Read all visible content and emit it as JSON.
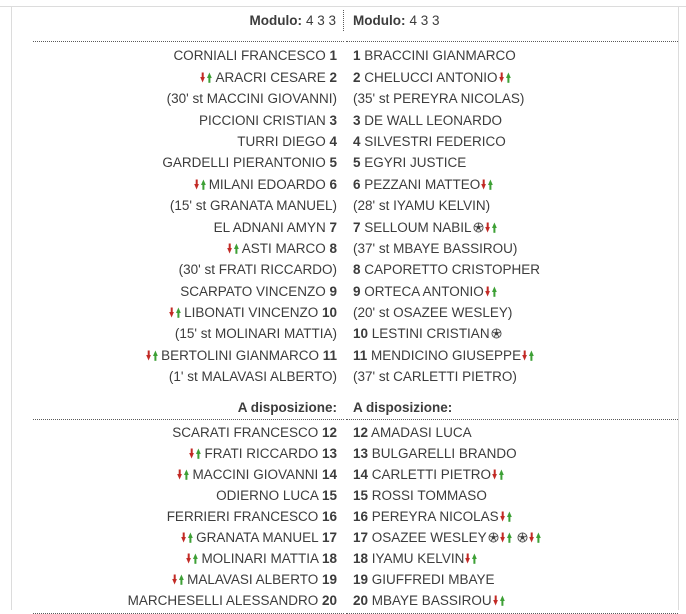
{
  "panel": {
    "modulo_label": "Modulo:",
    "bench_label": "A disposizione:"
  },
  "colors": {
    "text": "#3c3c3c",
    "panel_border": "#dcdcdc",
    "separator_dots": "#5a5a5a",
    "sub_red": "#c22a25",
    "sub_green": "#3da035",
    "ball_dark": "#3f3f3f",
    "ball_light": "#ededed"
  },
  "icons": {
    "substitution": "red-down-arrow-green-up-arrow",
    "goal": "soccer-ball"
  },
  "teams": [
    {
      "side": "home",
      "modulo": "4 3 3",
      "starters": [
        {
          "num": "1",
          "name": "CORNIALI FRANCESCO",
          "icons": [],
          "note": ""
        },
        {
          "num": "2",
          "name": "ARACRI CESARE",
          "icons": [
            "sub"
          ],
          "note": "(30' st MACCINI GIOVANNI)"
        },
        {
          "num": "3",
          "name": "PICCIONI CRISTIAN",
          "icons": [],
          "note": ""
        },
        {
          "num": "4",
          "name": "TURRI DIEGO",
          "icons": [],
          "note": ""
        },
        {
          "num": "5",
          "name": "GARDELLI PIERANTONIO",
          "icons": [],
          "note": ""
        },
        {
          "num": "6",
          "name": "MILANI EDOARDO",
          "icons": [
            "sub"
          ],
          "note": "(15' st GRANATA MANUEL)"
        },
        {
          "num": "7",
          "name": "EL ADNANI AMYN",
          "icons": [],
          "note": ""
        },
        {
          "num": "8",
          "name": "ASTI MARCO",
          "icons": [
            "sub"
          ],
          "note": "(30' st FRATI RICCARDO)"
        },
        {
          "num": "9",
          "name": "SCARPATO VINCENZO",
          "icons": [],
          "note": ""
        },
        {
          "num": "10",
          "name": "LIBONATI VINCENZO",
          "icons": [
            "sub"
          ],
          "note": "(15' st MOLINARI MATTIA)"
        },
        {
          "num": "11",
          "name": "BERTOLINI GIANMARCO",
          "icons": [
            "sub"
          ],
          "note": "(1' st MALAVASI ALBERTO)"
        }
      ],
      "bench": [
        {
          "num": "12",
          "name": "SCARATI FRANCESCO",
          "icons": [],
          "note": ""
        },
        {
          "num": "13",
          "name": "FRATI RICCARDO",
          "icons": [
            "sub"
          ],
          "note": ""
        },
        {
          "num": "14",
          "name": "MACCINI GIOVANNI",
          "icons": [
            "sub"
          ],
          "note": ""
        },
        {
          "num": "15",
          "name": "ODIERNO LUCA",
          "icons": [],
          "note": ""
        },
        {
          "num": "16",
          "name": "FERRIERI FRANCESCO",
          "icons": [],
          "note": ""
        },
        {
          "num": "17",
          "name": "GRANATA MANUEL",
          "icons": [
            "sub"
          ],
          "note": ""
        },
        {
          "num": "18",
          "name": "MOLINARI MATTIA",
          "icons": [
            "sub"
          ],
          "note": ""
        },
        {
          "num": "19",
          "name": "MALAVASI ALBERTO",
          "icons": [
            "sub"
          ],
          "note": ""
        },
        {
          "num": "20",
          "name": "MARCHESELLI ALESSANDRO",
          "icons": [],
          "note": ""
        }
      ]
    },
    {
      "side": "away",
      "modulo": "4 3 3",
      "starters": [
        {
          "num": "1",
          "name": "BRACCINI GIANMARCO",
          "icons": [],
          "note": ""
        },
        {
          "num": "2",
          "name": "CHELUCCI ANTONIO",
          "icons": [
            "sub"
          ],
          "note": "(35' st PEREYRA NICOLAS)"
        },
        {
          "num": "3",
          "name": "DE WALL LEONARDO",
          "icons": [],
          "note": ""
        },
        {
          "num": "4",
          "name": "SILVESTRI FEDERICO",
          "icons": [],
          "note": ""
        },
        {
          "num": "5",
          "name": "EGYRI JUSTICE",
          "icons": [],
          "note": ""
        },
        {
          "num": "6",
          "name": "PEZZANI MATTEO",
          "icons": [
            "sub"
          ],
          "note": "(28' st IYAMU KELVIN)"
        },
        {
          "num": "7",
          "name": "SELLOUM NABIL",
          "icons": [
            "goal",
            "sub"
          ],
          "note": "(37' st MBAYE BASSIROU)"
        },
        {
          "num": "8",
          "name": "CAPORETTO CRISTOPHER",
          "icons": [],
          "note": ""
        },
        {
          "num": "9",
          "name": "ORTECA ANTONIO",
          "icons": [
            "sub"
          ],
          "note": "(20' st OSAZEE WESLEY)"
        },
        {
          "num": "10",
          "name": "LESTINI CRISTIAN",
          "icons": [
            "goal"
          ],
          "note": ""
        },
        {
          "num": "11",
          "name": "MENDICINO GIUSEPPE",
          "icons": [
            "sub"
          ],
          "note": "(37' st CARLETTI PIETRO)"
        }
      ],
      "bench": [
        {
          "num": "12",
          "name": "AMADASI LUCA",
          "icons": [],
          "note": ""
        },
        {
          "num": "13",
          "name": "BULGARELLI BRANDO",
          "icons": [],
          "note": ""
        },
        {
          "num": "14",
          "name": "CARLETTI PIETRO",
          "icons": [
            "sub"
          ],
          "note": ""
        },
        {
          "num": "15",
          "name": "ROSSI TOMMASO",
          "icons": [],
          "note": ""
        },
        {
          "num": "16",
          "name": "PEREYRA NICOLAS",
          "icons": [
            "sub"
          ],
          "note": ""
        },
        {
          "num": "17",
          "name": "OSAZEE WESLEY",
          "icons": [
            "goal",
            "sub",
            "gap",
            "goal",
            "sub"
          ],
          "note": ""
        },
        {
          "num": "18",
          "name": "IYAMU KELVIN",
          "icons": [
            "sub"
          ],
          "note": ""
        },
        {
          "num": "19",
          "name": "GIUFFREDI MBAYE",
          "icons": [],
          "note": ""
        },
        {
          "num": "20",
          "name": "MBAYE BASSIROU",
          "icons": [
            "sub"
          ],
          "note": ""
        }
      ]
    }
  ]
}
